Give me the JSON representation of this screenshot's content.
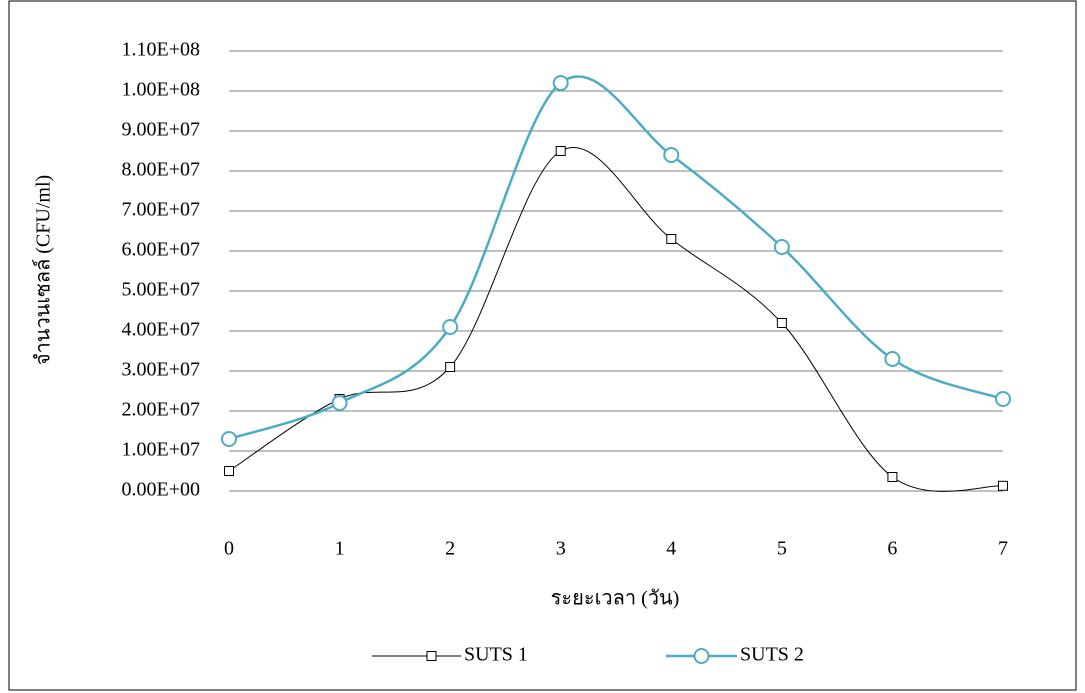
{
  "chart_data": {
    "type": "line",
    "x_label": "ระยะเวลา (วัน)",
    "y_label": "จำนวนเซลล์ (CFU/ml)",
    "x": [
      0,
      1,
      2,
      3,
      4,
      5,
      6,
      7
    ],
    "xlim": [
      0,
      7
    ],
    "xticks": [
      0,
      1,
      2,
      3,
      4,
      5,
      6,
      7
    ],
    "ylim": [
      0,
      110000000
    ],
    "yticks": [
      {
        "value": 0,
        "label": "0.00E+00"
      },
      {
        "value": 10000000,
        "label": "1.00E+07"
      },
      {
        "value": 20000000,
        "label": "2.00E+07"
      },
      {
        "value": 30000000,
        "label": "3.00E+07"
      },
      {
        "value": 40000000,
        "label": "4.00E+07"
      },
      {
        "value": 50000000,
        "label": "5.00E+07"
      },
      {
        "value": 60000000,
        "label": "6.00E+07"
      },
      {
        "value": 70000000,
        "label": "7.00E+07"
      },
      {
        "value": 80000000,
        "label": "8.00E+07"
      },
      {
        "value": 90000000,
        "label": "9.00E+07"
      },
      {
        "value": 100000000,
        "label": "1.00E+08"
      },
      {
        "value": 110000000,
        "label": "1.10E+08"
      }
    ],
    "grid": true,
    "legend": "bottom",
    "series": [
      {
        "name": "SUTS 1",
        "color": "#000000",
        "marker": "square",
        "values": [
          5000000,
          23000000,
          31000000,
          85000000,
          63000000,
          42000000,
          3500000,
          1300000
        ]
      },
      {
        "name": "SUTS 2",
        "color": "#4bacc6",
        "marker": "circle",
        "values": [
          13000000,
          22000000,
          41000000,
          102000000,
          84000000,
          61000000,
          33000000,
          23000000
        ]
      }
    ]
  }
}
